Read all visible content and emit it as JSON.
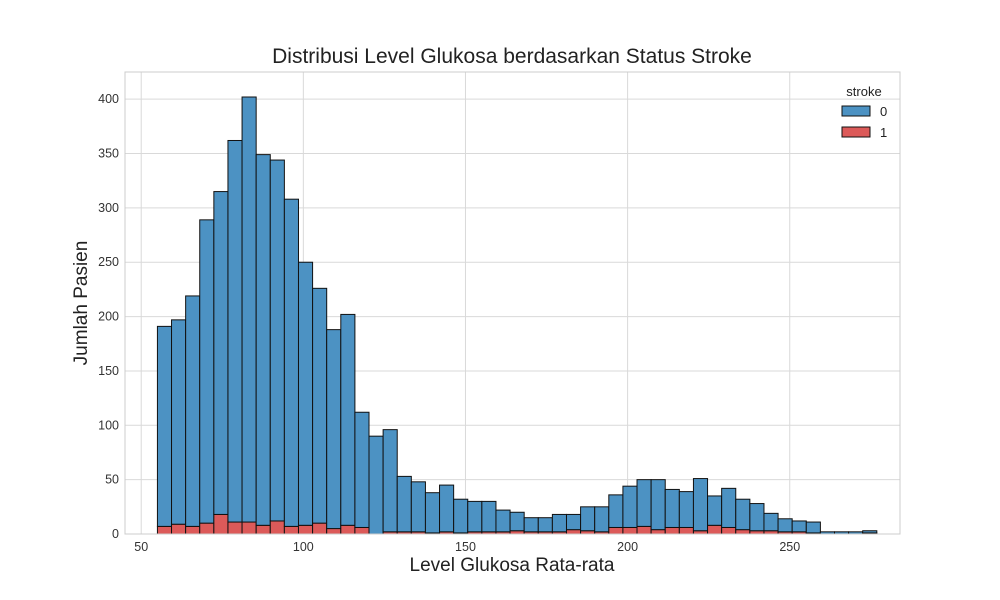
{
  "chart_data": {
    "type": "bar",
    "subtype": "stacked-histogram",
    "title": "Distribusi Level Glukosa berdasarkan Status Stroke",
    "xlabel": "Level Glukosa Rata-rata",
    "ylabel": "Jumlah Pasien",
    "xlim": [
      45,
      284
    ],
    "ylim": [
      0,
      425
    ],
    "xticks": [
      50,
      100,
      150,
      200,
      250
    ],
    "yticks": [
      0,
      50,
      100,
      150,
      200,
      250,
      300,
      350,
      400
    ],
    "grid": true,
    "bin_start": 55,
    "bin_width": 4.35,
    "legend": {
      "title": "stroke",
      "placement": "top-right",
      "entries": [
        {
          "label": "0",
          "color": "#4c92c3"
        },
        {
          "label": "1",
          "color": "#dc5a59"
        }
      ]
    },
    "series": [
      {
        "label": "0",
        "color": "#4c92c3",
        "values": [
          184,
          188,
          212,
          279,
          297,
          351,
          391,
          341,
          332,
          301,
          242,
          216,
          183,
          194,
          106,
          90,
          94,
          51,
          46,
          37,
          43,
          31,
          28,
          28,
          20,
          17,
          13,
          13,
          16,
          14,
          22,
          23,
          30,
          38,
          43,
          46,
          35,
          33,
          48,
          27,
          36,
          28,
          25,
          16,
          12,
          10,
          10,
          2,
          2,
          2,
          2
        ]
      },
      {
        "label": "1",
        "color": "#dc5a59",
        "values": [
          7,
          9,
          7,
          10,
          18,
          11,
          11,
          8,
          12,
          7,
          8,
          10,
          5,
          8,
          6,
          0,
          2,
          2,
          2,
          1,
          2,
          1,
          2,
          2,
          2,
          3,
          2,
          2,
          2,
          4,
          3,
          2,
          6,
          6,
          7,
          4,
          6,
          6,
          3,
          8,
          6,
          4,
          3,
          3,
          2,
          2,
          1,
          0,
          0,
          0,
          1
        ]
      }
    ]
  }
}
